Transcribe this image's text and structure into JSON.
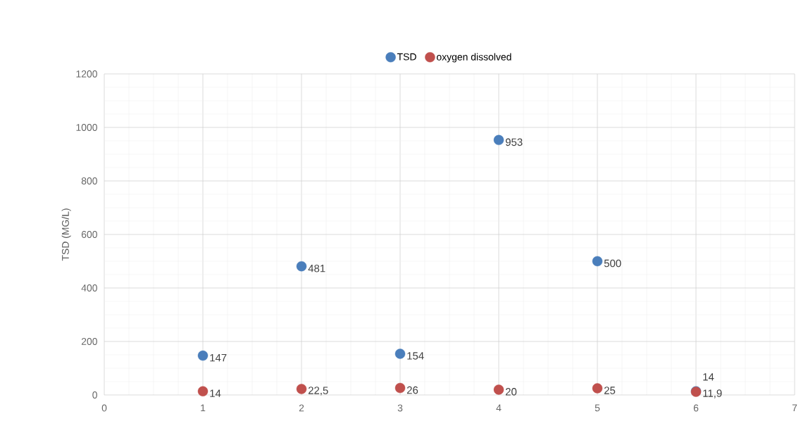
{
  "chart_data": {
    "type": "scatter",
    "ylabel": "TSD (MG/L)",
    "x": [
      1,
      2,
      3,
      4,
      5,
      6
    ],
    "xlim": [
      0,
      7
    ],
    "xticks": [
      0,
      1,
      2,
      3,
      4,
      5,
      6,
      7
    ],
    "ylim": [
      0,
      1200
    ],
    "yticks": [
      0,
      200,
      400,
      600,
      800,
      1000,
      1200
    ],
    "grid": true,
    "legend": "top",
    "marker": "circle",
    "series": [
      {
        "name": "TSD",
        "color": "#4a7ebb",
        "values": [
          147,
          481,
          154,
          953,
          500,
          14
        ],
        "value_labels": [
          "147",
          "481",
          "154",
          "953",
          "500",
          "14"
        ]
      },
      {
        "name": "oxygen dissolved",
        "color": "#c0504d",
        "values": [
          14,
          22.5,
          26,
          20,
          25,
          11.9
        ],
        "value_labels": [
          "14",
          "22,5",
          "26",
          "20",
          "25",
          "11,9"
        ]
      }
    ]
  }
}
